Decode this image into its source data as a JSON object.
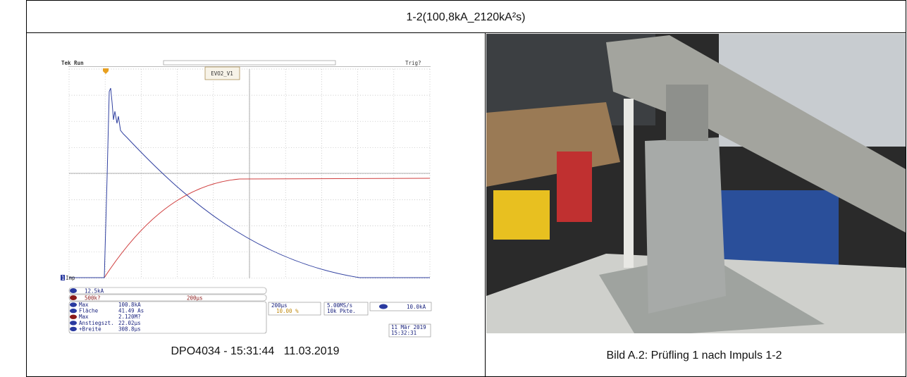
{
  "header": {
    "title": "1-2(100,8kA_2120kA²s)"
  },
  "scope": {
    "status": "Tek Run",
    "trigger_state": "Trig?",
    "label": "EVO2_V1",
    "channel_marker": "1",
    "channel_name": "Imp",
    "ch1_scale": "12.5kA",
    "ch2_scale": "500k?",
    "math_timebase": "200µs",
    "measurements": [
      {
        "name": "Max",
        "value": "100.8kA"
      },
      {
        "name": "Fläche",
        "value": "41.49 As"
      },
      {
        "name": "Max",
        "value": "2.120M?"
      },
      {
        "name": "Anstiegszt.",
        "value": "22.02µs"
      },
      {
        "name": "+Breite",
        "value": "308.8µs"
      }
    ],
    "timebase": "200µs",
    "trigger_position": "10.00 %",
    "sample_rate": "5.00MS/s",
    "record_length": "10k Pkte.",
    "trigger_level": "10.0kA",
    "date": "11 Mär 2019",
    "time": "15:32:31"
  },
  "left_caption": "DPO4034 - 15:31:44   11.03.2019",
  "right_caption": "Bild A.2: Prüfling 1 nach Impuls 1-2"
}
